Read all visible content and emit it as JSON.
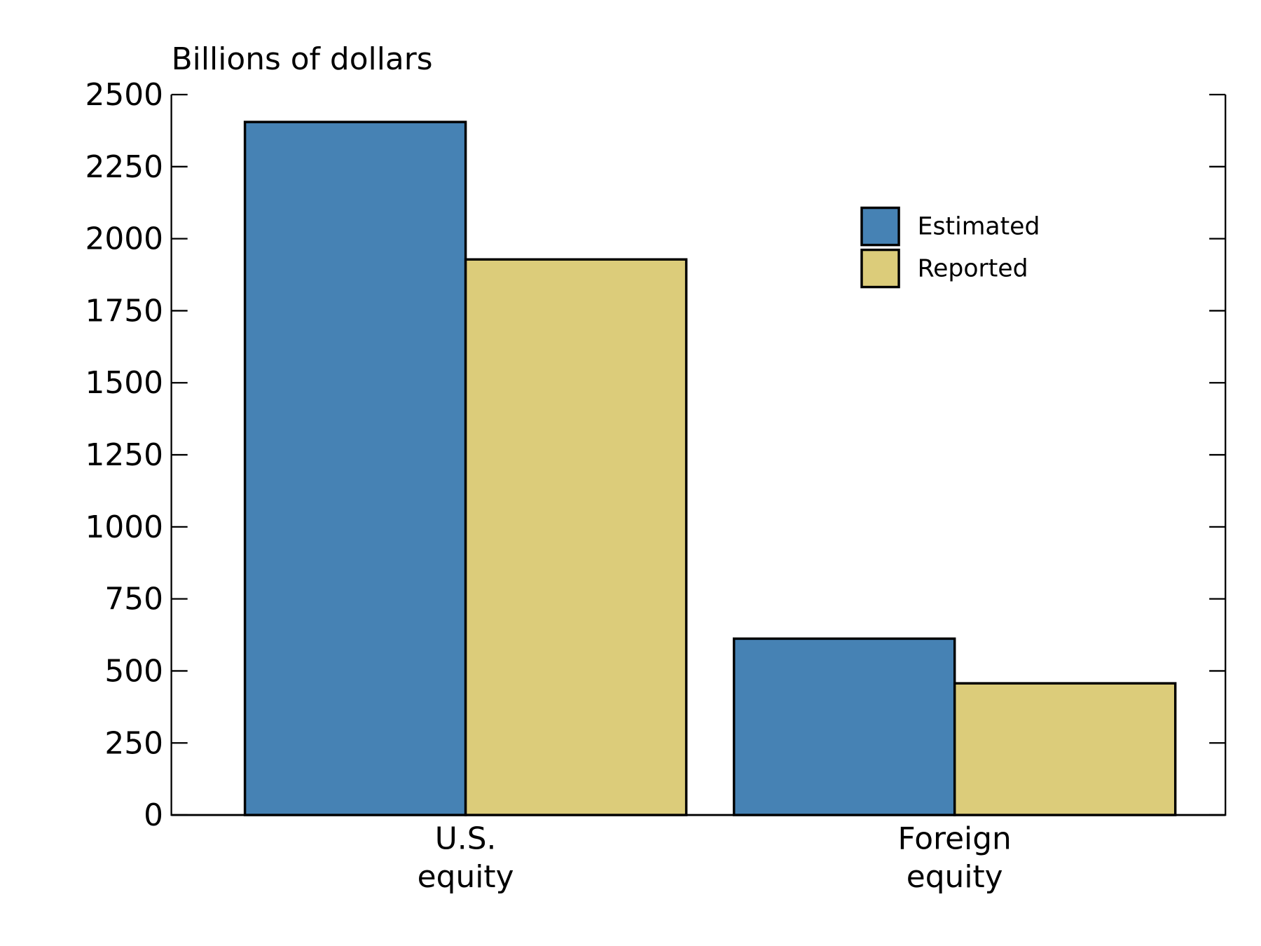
{
  "chart_data": {
    "type": "bar",
    "title": "",
    "ylabel": "Billions of dollars",
    "xlabel": "",
    "categories": [
      [
        "U.S.",
        "equity"
      ],
      [
        "Foreign",
        "equity"
      ]
    ],
    "series": [
      {
        "name": "Estimated",
        "color": "#4682b4",
        "values": [
          2405,
          612
        ]
      },
      {
        "name": "Reported",
        "color": "#dccc7a",
        "values": [
          1928,
          457
        ]
      }
    ],
    "ylim": [
      0,
      2500
    ],
    "yticks": [
      0,
      250,
      500,
      750,
      1000,
      1250,
      1500,
      1750,
      2000,
      2250,
      2500
    ],
    "grid": false,
    "legend_position": "top-right"
  }
}
